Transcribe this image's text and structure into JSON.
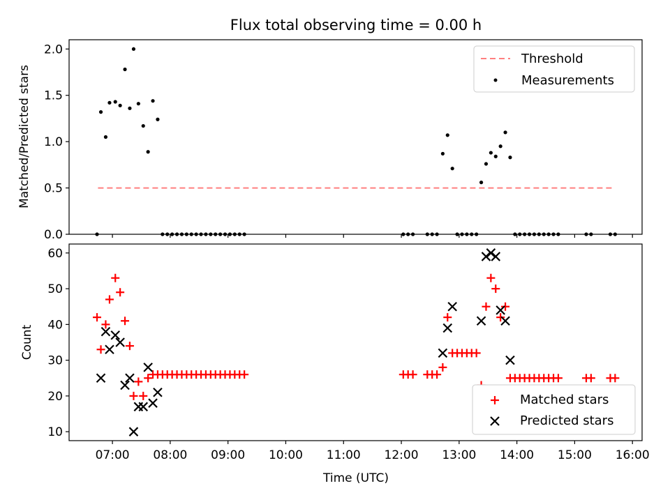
{
  "chart_data": [
    {
      "type": "scatter",
      "title": "Flux total observing time = 0.00 h",
      "ylabel": "Matched/Predicted stars",
      "xlabel": "",
      "ylim": [
        0,
        2.1
      ],
      "yticks": [
        0.0,
        0.5,
        1.0,
        1.5,
        2.0
      ],
      "ytick_labels": [
        "0.0",
        "0.5",
        "1.0",
        "1.5",
        "2.0"
      ],
      "xlim": [
        "06:15",
        "16:10"
      ],
      "grid": false,
      "legend_position": "top-right",
      "series": [
        {
          "name": "Threshold",
          "kind": "dashed-line",
          "color": "#ff7f7f",
          "points": [
            [
              "06:45",
              0.5
            ],
            [
              "15:40",
              0.5
            ]
          ]
        },
        {
          "name": "Measurements",
          "kind": "dots",
          "color": "#000000",
          "points": [
            [
              "06:44",
              0.0
            ],
            [
              "06:48",
              1.32
            ],
            [
              "06:53",
              1.05
            ],
            [
              "06:57",
              1.42
            ],
            [
              "07:03",
              1.43
            ],
            [
              "07:08",
              1.39
            ],
            [
              "07:13",
              1.78
            ],
            [
              "07:18",
              1.36
            ],
            [
              "07:22",
              2.0
            ],
            [
              "07:27",
              1.41
            ],
            [
              "07:32",
              1.17
            ],
            [
              "07:37",
              0.89
            ],
            [
              "07:42",
              1.44
            ],
            [
              "07:47",
              1.24
            ],
            [
              "07:52",
              0.0
            ],
            [
              "07:57",
              0.0
            ],
            [
              "08:02",
              0.0
            ],
            [
              "08:07",
              0.0
            ],
            [
              "08:12",
              0.0
            ],
            [
              "08:17",
              0.0
            ],
            [
              "08:22",
              0.0
            ],
            [
              "08:27",
              0.0
            ],
            [
              "08:32",
              0.0
            ],
            [
              "08:37",
              0.0
            ],
            [
              "08:42",
              0.0
            ],
            [
              "08:47",
              0.0
            ],
            [
              "08:52",
              0.0
            ],
            [
              "08:57",
              0.0
            ],
            [
              "09:02",
              0.0
            ],
            [
              "09:07",
              0.0
            ],
            [
              "09:12",
              0.0
            ],
            [
              "09:17",
              0.0
            ],
            [
              "12:02",
              0.0
            ],
            [
              "12:07",
              0.0
            ],
            [
              "12:12",
              0.0
            ],
            [
              "12:27",
              0.0
            ],
            [
              "12:32",
              0.0
            ],
            [
              "12:37",
              0.0
            ],
            [
              "12:43",
              0.87
            ],
            [
              "12:48",
              1.07
            ],
            [
              "12:53",
              0.71
            ],
            [
              "12:58",
              0.0
            ],
            [
              "13:03",
              0.0
            ],
            [
              "13:08",
              0.0
            ],
            [
              "13:13",
              0.0
            ],
            [
              "13:18",
              0.0
            ],
            [
              "13:23",
              0.56
            ],
            [
              "13:28",
              0.76
            ],
            [
              "13:33",
              0.88
            ],
            [
              "13:38",
              0.84
            ],
            [
              "13:43",
              0.95
            ],
            [
              "13:48",
              1.1
            ],
            [
              "13:53",
              0.83
            ],
            [
              "13:58",
              0.0
            ],
            [
              "14:03",
              0.0
            ],
            [
              "14:08",
              0.0
            ],
            [
              "14:13",
              0.0
            ],
            [
              "14:18",
              0.0
            ],
            [
              "14:23",
              0.0
            ],
            [
              "14:28",
              0.0
            ],
            [
              "14:33",
              0.0
            ],
            [
              "14:38",
              0.0
            ],
            [
              "14:43",
              0.0
            ],
            [
              "15:12",
              0.0
            ],
            [
              "15:17",
              0.0
            ],
            [
              "15:37",
              0.0
            ],
            [
              "15:42",
              0.0
            ]
          ]
        }
      ]
    },
    {
      "type": "scatter",
      "title": "",
      "ylabel": "Count",
      "xlabel": "Time (UTC)",
      "ylim": [
        7.5,
        62.5
      ],
      "yticks": [
        10,
        20,
        30,
        40,
        50,
        60
      ],
      "ytick_labels": [
        "10",
        "20",
        "30",
        "40",
        "50",
        "60"
      ],
      "xlim": [
        "06:15",
        "16:10"
      ],
      "xticks": [
        "07:00",
        "08:00",
        "09:00",
        "10:00",
        "11:00",
        "12:00",
        "13:00",
        "14:00",
        "15:00",
        "16:00"
      ],
      "xtick_labels": [
        "07:00",
        "08:00",
        "09:00",
        "10:00",
        "11:00",
        "12:00",
        "13:00",
        "14:00",
        "15:00",
        "16:00"
      ],
      "grid": false,
      "legend_position": "bottom-right",
      "series": [
        {
          "name": "Matched stars",
          "marker": "+",
          "color": "#ff0000",
          "points": [
            [
              "06:44",
              42
            ],
            [
              "06:48",
              33
            ],
            [
              "06:53",
              40
            ],
            [
              "06:57",
              47
            ],
            [
              "07:03",
              53
            ],
            [
              "07:08",
              49
            ],
            [
              "07:13",
              41
            ],
            [
              "07:18",
              34
            ],
            [
              "07:22",
              20
            ],
            [
              "07:27",
              24
            ],
            [
              "07:32",
              20
            ],
            [
              "07:37",
              25
            ],
            [
              "07:42",
              26
            ],
            [
              "07:47",
              26
            ],
            [
              "07:52",
              26
            ],
            [
              "07:57",
              26
            ],
            [
              "08:02",
              26
            ],
            [
              "08:07",
              26
            ],
            [
              "08:12",
              26
            ],
            [
              "08:17",
              26
            ],
            [
              "08:22",
              26
            ],
            [
              "08:27",
              26
            ],
            [
              "08:32",
              26
            ],
            [
              "08:37",
              26
            ],
            [
              "08:42",
              26
            ],
            [
              "08:47",
              26
            ],
            [
              "08:52",
              26
            ],
            [
              "08:57",
              26
            ],
            [
              "09:02",
              26
            ],
            [
              "09:07",
              26
            ],
            [
              "09:12",
              26
            ],
            [
              "09:17",
              26
            ],
            [
              "12:02",
              26
            ],
            [
              "12:07",
              26
            ],
            [
              "12:12",
              26
            ],
            [
              "12:27",
              26
            ],
            [
              "12:32",
              26
            ],
            [
              "12:37",
              26
            ],
            [
              "12:43",
              28
            ],
            [
              "12:48",
              42
            ],
            [
              "12:53",
              32
            ],
            [
              "12:58",
              32
            ],
            [
              "13:03",
              32
            ],
            [
              "13:08",
              32
            ],
            [
              "13:13",
              32
            ],
            [
              "13:18",
              32
            ],
            [
              "13:23",
              23
            ],
            [
              "13:28",
              45
            ],
            [
              "13:33",
              53
            ],
            [
              "13:38",
              50
            ],
            [
              "13:43",
              42
            ],
            [
              "13:48",
              45
            ],
            [
              "13:53",
              25
            ],
            [
              "13:58",
              25
            ],
            [
              "14:03",
              25
            ],
            [
              "14:08",
              25
            ],
            [
              "14:13",
              25
            ],
            [
              "14:18",
              25
            ],
            [
              "14:23",
              25
            ],
            [
              "14:28",
              25
            ],
            [
              "14:33",
              25
            ],
            [
              "14:38",
              25
            ],
            [
              "14:43",
              25
            ],
            [
              "15:12",
              25
            ],
            [
              "15:17",
              25
            ],
            [
              "15:37",
              25
            ],
            [
              "15:42",
              25
            ]
          ]
        },
        {
          "name": "Predicted stars",
          "marker": "x",
          "color": "#000000",
          "points": [
            [
              "06:48",
              25
            ],
            [
              "06:53",
              38
            ],
            [
              "06:57",
              33
            ],
            [
              "07:03",
              37
            ],
            [
              "07:08",
              35
            ],
            [
              "07:13",
              23
            ],
            [
              "07:18",
              25
            ],
            [
              "07:22",
              10
            ],
            [
              "07:27",
              17
            ],
            [
              "07:32",
              17
            ],
            [
              "07:37",
              28
            ],
            [
              "07:42",
              18
            ],
            [
              "07:47",
              21
            ],
            [
              "12:43",
              32
            ],
            [
              "12:48",
              39
            ],
            [
              "12:53",
              45
            ],
            [
              "13:23",
              41
            ],
            [
              "13:28",
              59
            ],
            [
              "13:33",
              60
            ],
            [
              "13:38",
              59
            ],
            [
              "13:43",
              44
            ],
            [
              "13:48",
              41
            ],
            [
              "13:53",
              30
            ]
          ]
        }
      ]
    }
  ]
}
